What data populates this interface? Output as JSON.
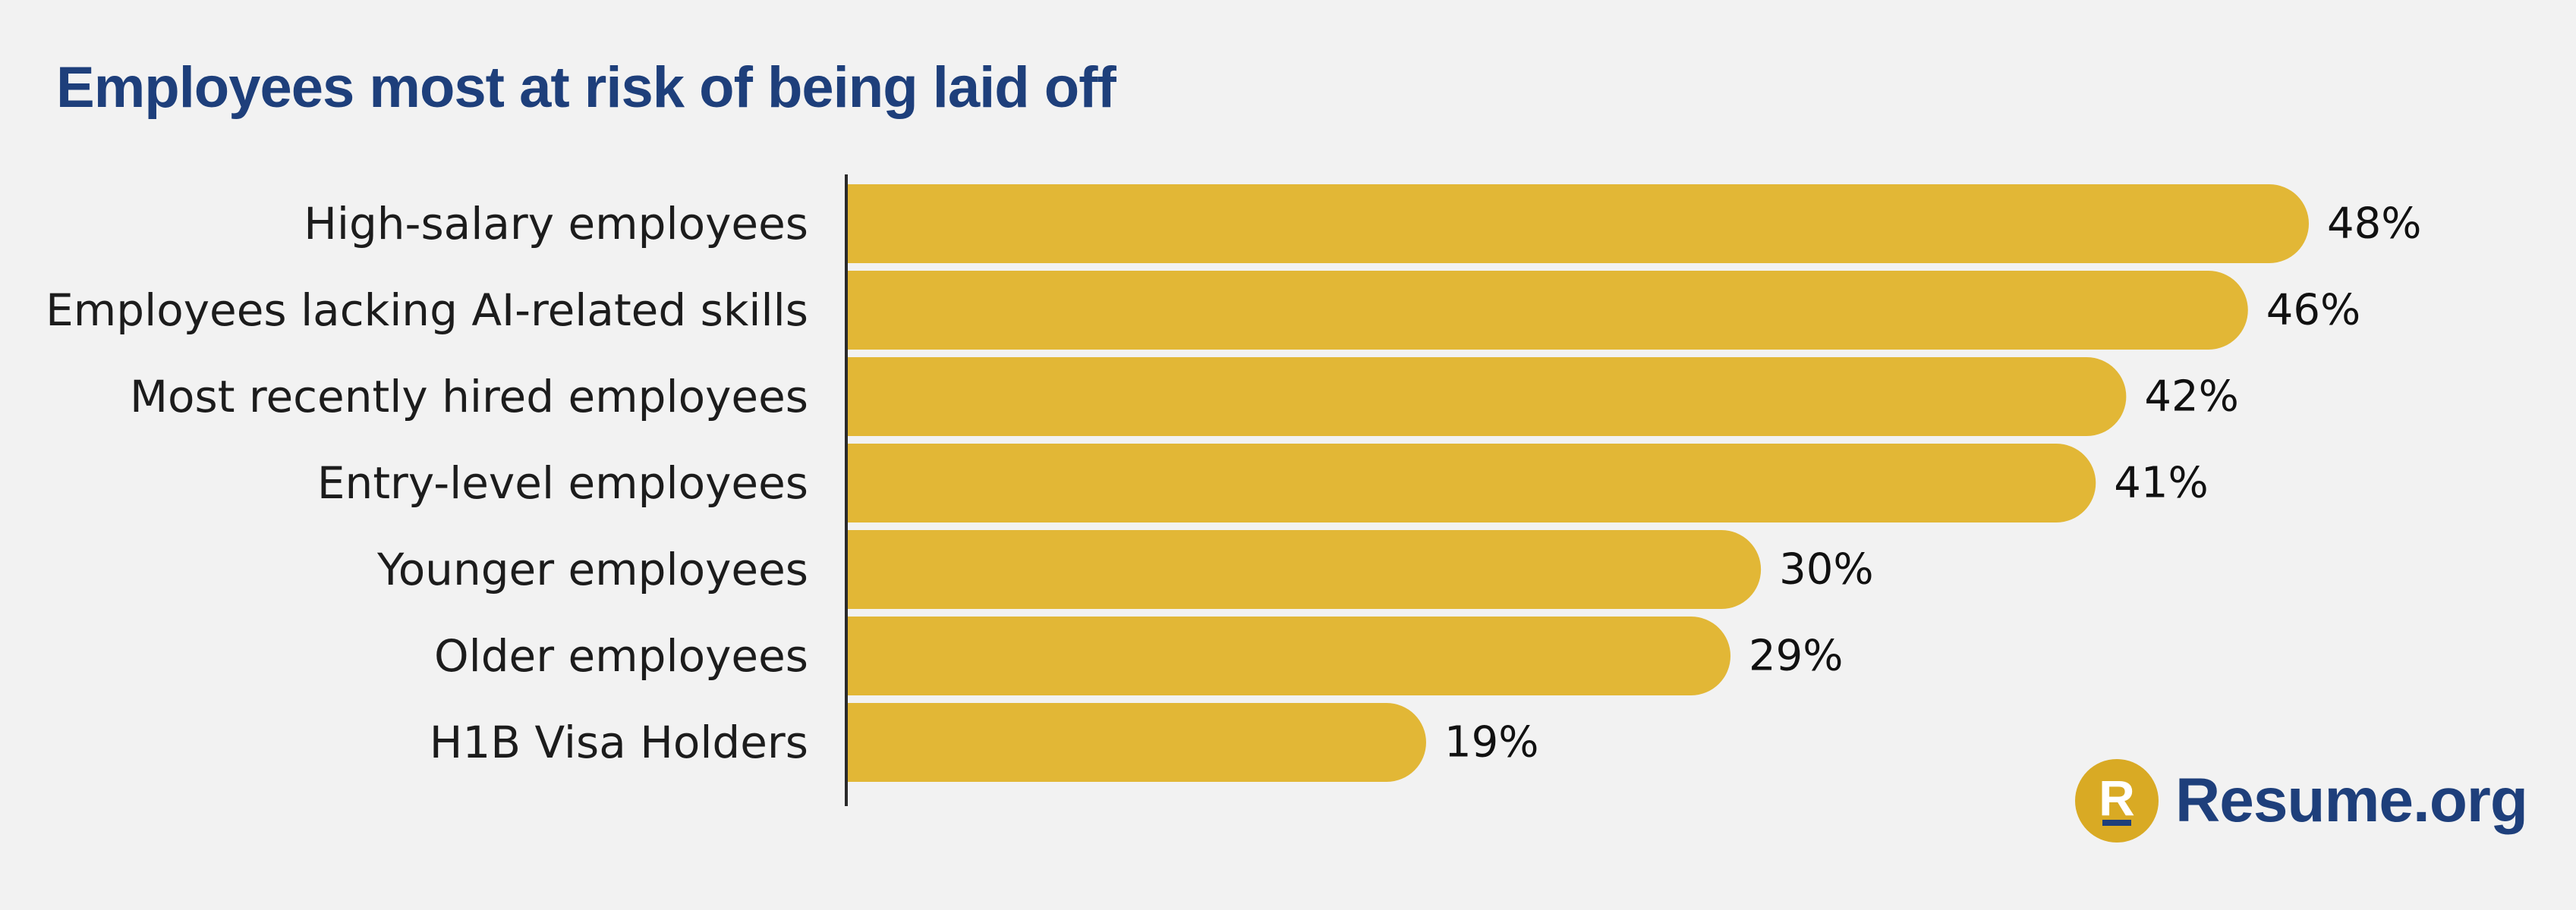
{
  "chart_data": {
    "type": "bar",
    "orientation": "horizontal",
    "title": "Employees most at risk of being laid off",
    "categories": [
      "High-salary employees",
      "Employees lacking AI-related skills",
      "Most recently hired employees",
      "Entry-level employees",
      "Younger employees",
      "Older employees",
      "H1B Visa Holders"
    ],
    "values": [
      48,
      46,
      42,
      41,
      30,
      29,
      19
    ],
    "value_labels": [
      "48%",
      "46%",
      "42%",
      "41%",
      "30%",
      "29%",
      "19%"
    ],
    "unit": "%",
    "xlim": [
      0,
      48
    ],
    "grid": false,
    "legend": "none",
    "bar_color": "#e2b736"
  },
  "brand": {
    "mark_letter": "R",
    "name": "Resume.org",
    "mark_color": "#d9aa24",
    "text_color": "#1e3f7b"
  }
}
